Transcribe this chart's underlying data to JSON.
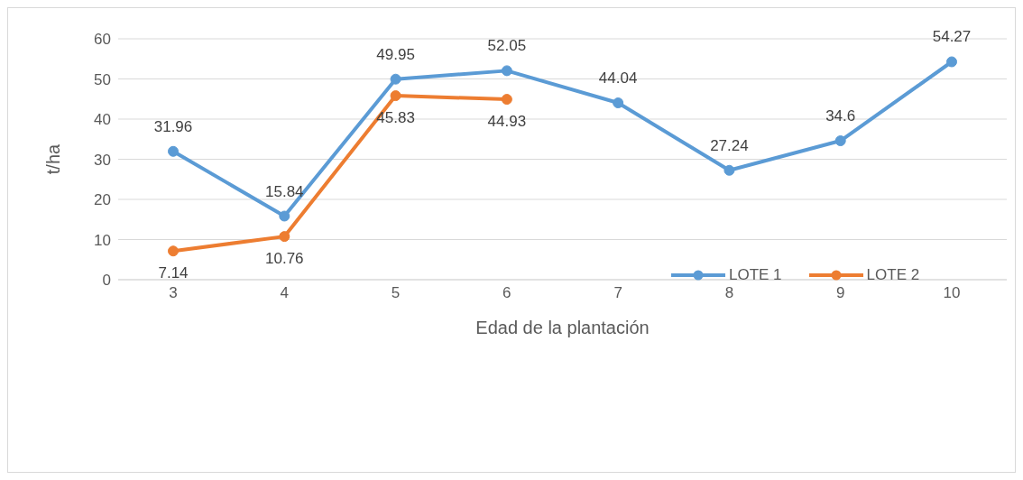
{
  "chart_data": {
    "type": "line",
    "xlabel": "Edad de la plantación",
    "ylabel": "t/ha",
    "categories": [
      "3",
      "4",
      "5",
      "6",
      "7",
      "8",
      "9",
      "10"
    ],
    "series": [
      {
        "name": "LOTE 1",
        "color": "#5b9bd5",
        "values": [
          31.96,
          15.84,
          49.95,
          52.05,
          44.04,
          27.24,
          34.6,
          54.27
        ]
      },
      {
        "name": "LOTE 2",
        "color": "#ed7d31",
        "values": [
          7.14,
          10.76,
          45.83,
          44.93,
          null,
          null,
          null,
          null
        ]
      }
    ],
    "ylim": [
      0,
      60
    ],
    "yticks": [
      0,
      10,
      20,
      30,
      40,
      50,
      60
    ],
    "grid": "y",
    "legend": "bottom right",
    "marker": "circle",
    "line_style": "solid",
    "data_labels": true
  }
}
